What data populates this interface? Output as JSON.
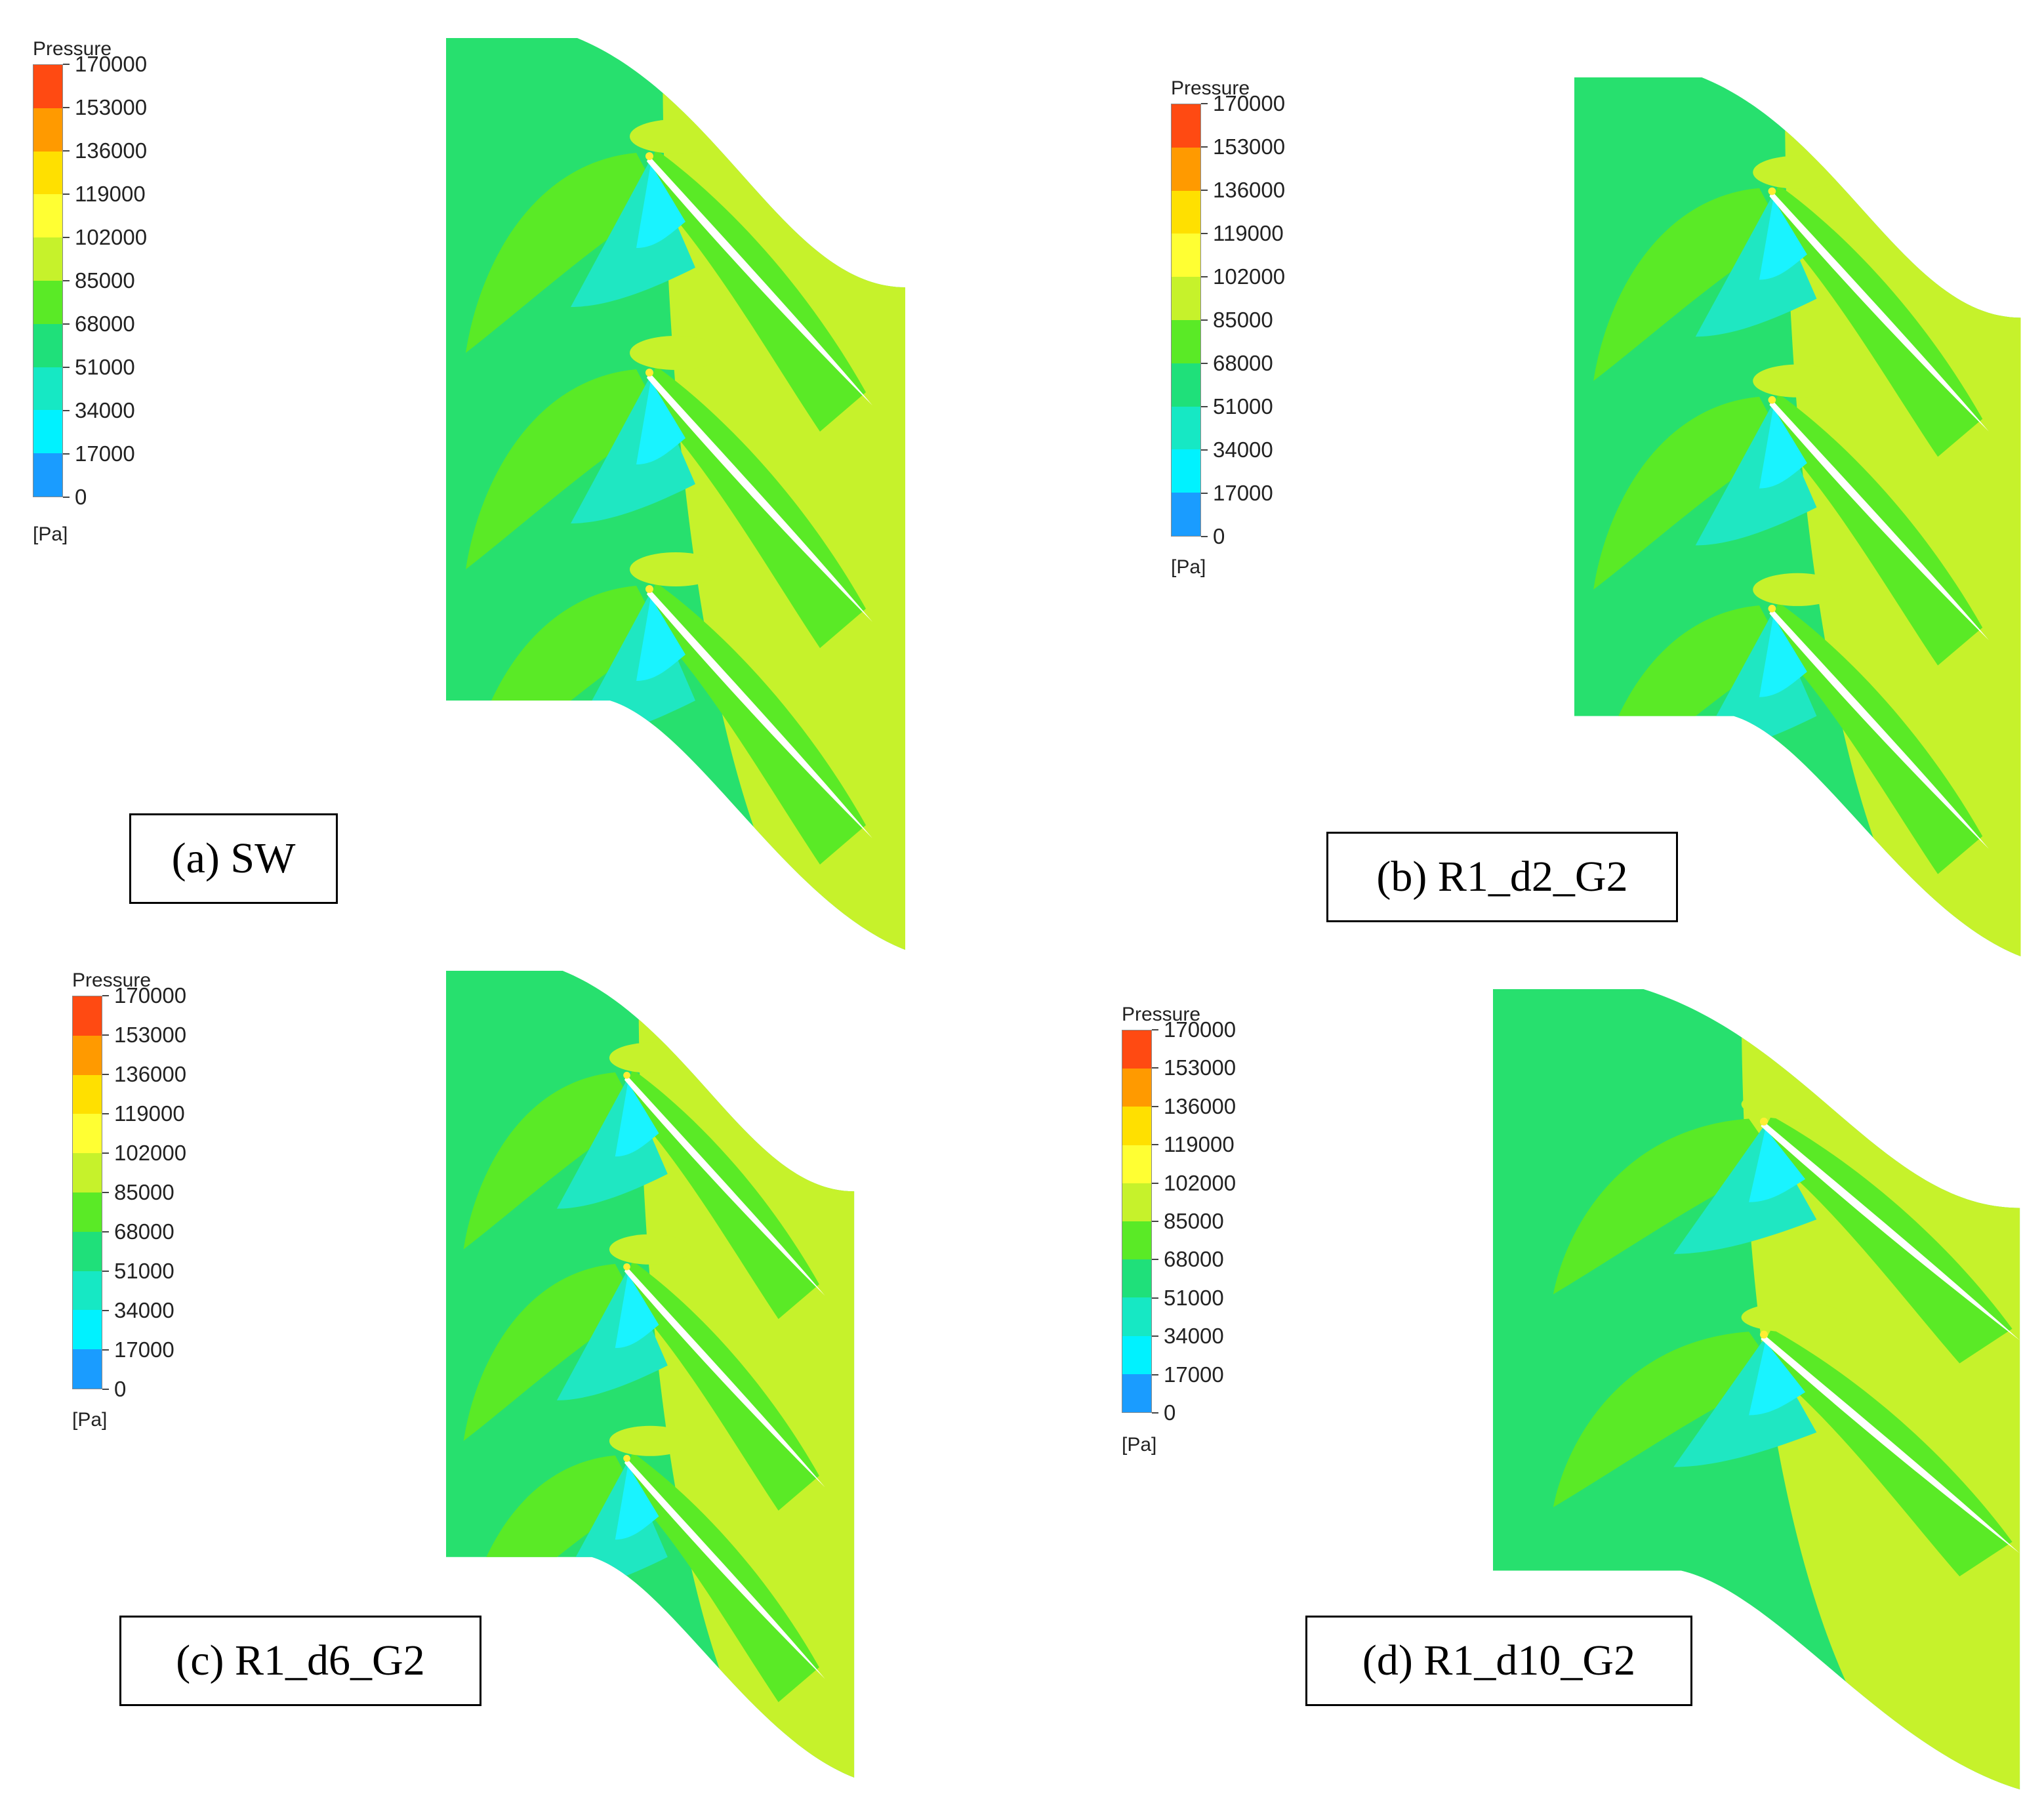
{
  "legend": {
    "title": "Pressure",
    "unit": "[Pa]",
    "ticks": [
      "170000",
      "153000",
      "136000",
      "119000",
      "102000",
      "85000",
      "68000",
      "51000",
      "34000",
      "17000",
      "0"
    ],
    "colors": [
      "#ff4a12",
      "#ff9a00",
      "#ffe000",
      "#ffff33",
      "#c6f22b",
      "#5aea26",
      "#1fe07a",
      "#16e8c4",
      "#00f2ff",
      "#1a9cff",
      "#0a2ef0"
    ]
  },
  "field_colors": {
    "inlet": "#27e06e",
    "mid": "#5aea26",
    "outlet": "#c6f22b",
    "low": "#1fe7c2",
    "lowest": "#19f3ff",
    "stagnation": "#ffee33"
  },
  "panels": [
    {
      "id": "a",
      "caption": "(a) SW"
    },
    {
      "id": "b",
      "caption": "(b) R1_d2_G2"
    },
    {
      "id": "c",
      "caption": "(c) R1_d6_G2"
    },
    {
      "id": "d",
      "caption": "(d) R1_d10_G2"
    }
  ]
}
